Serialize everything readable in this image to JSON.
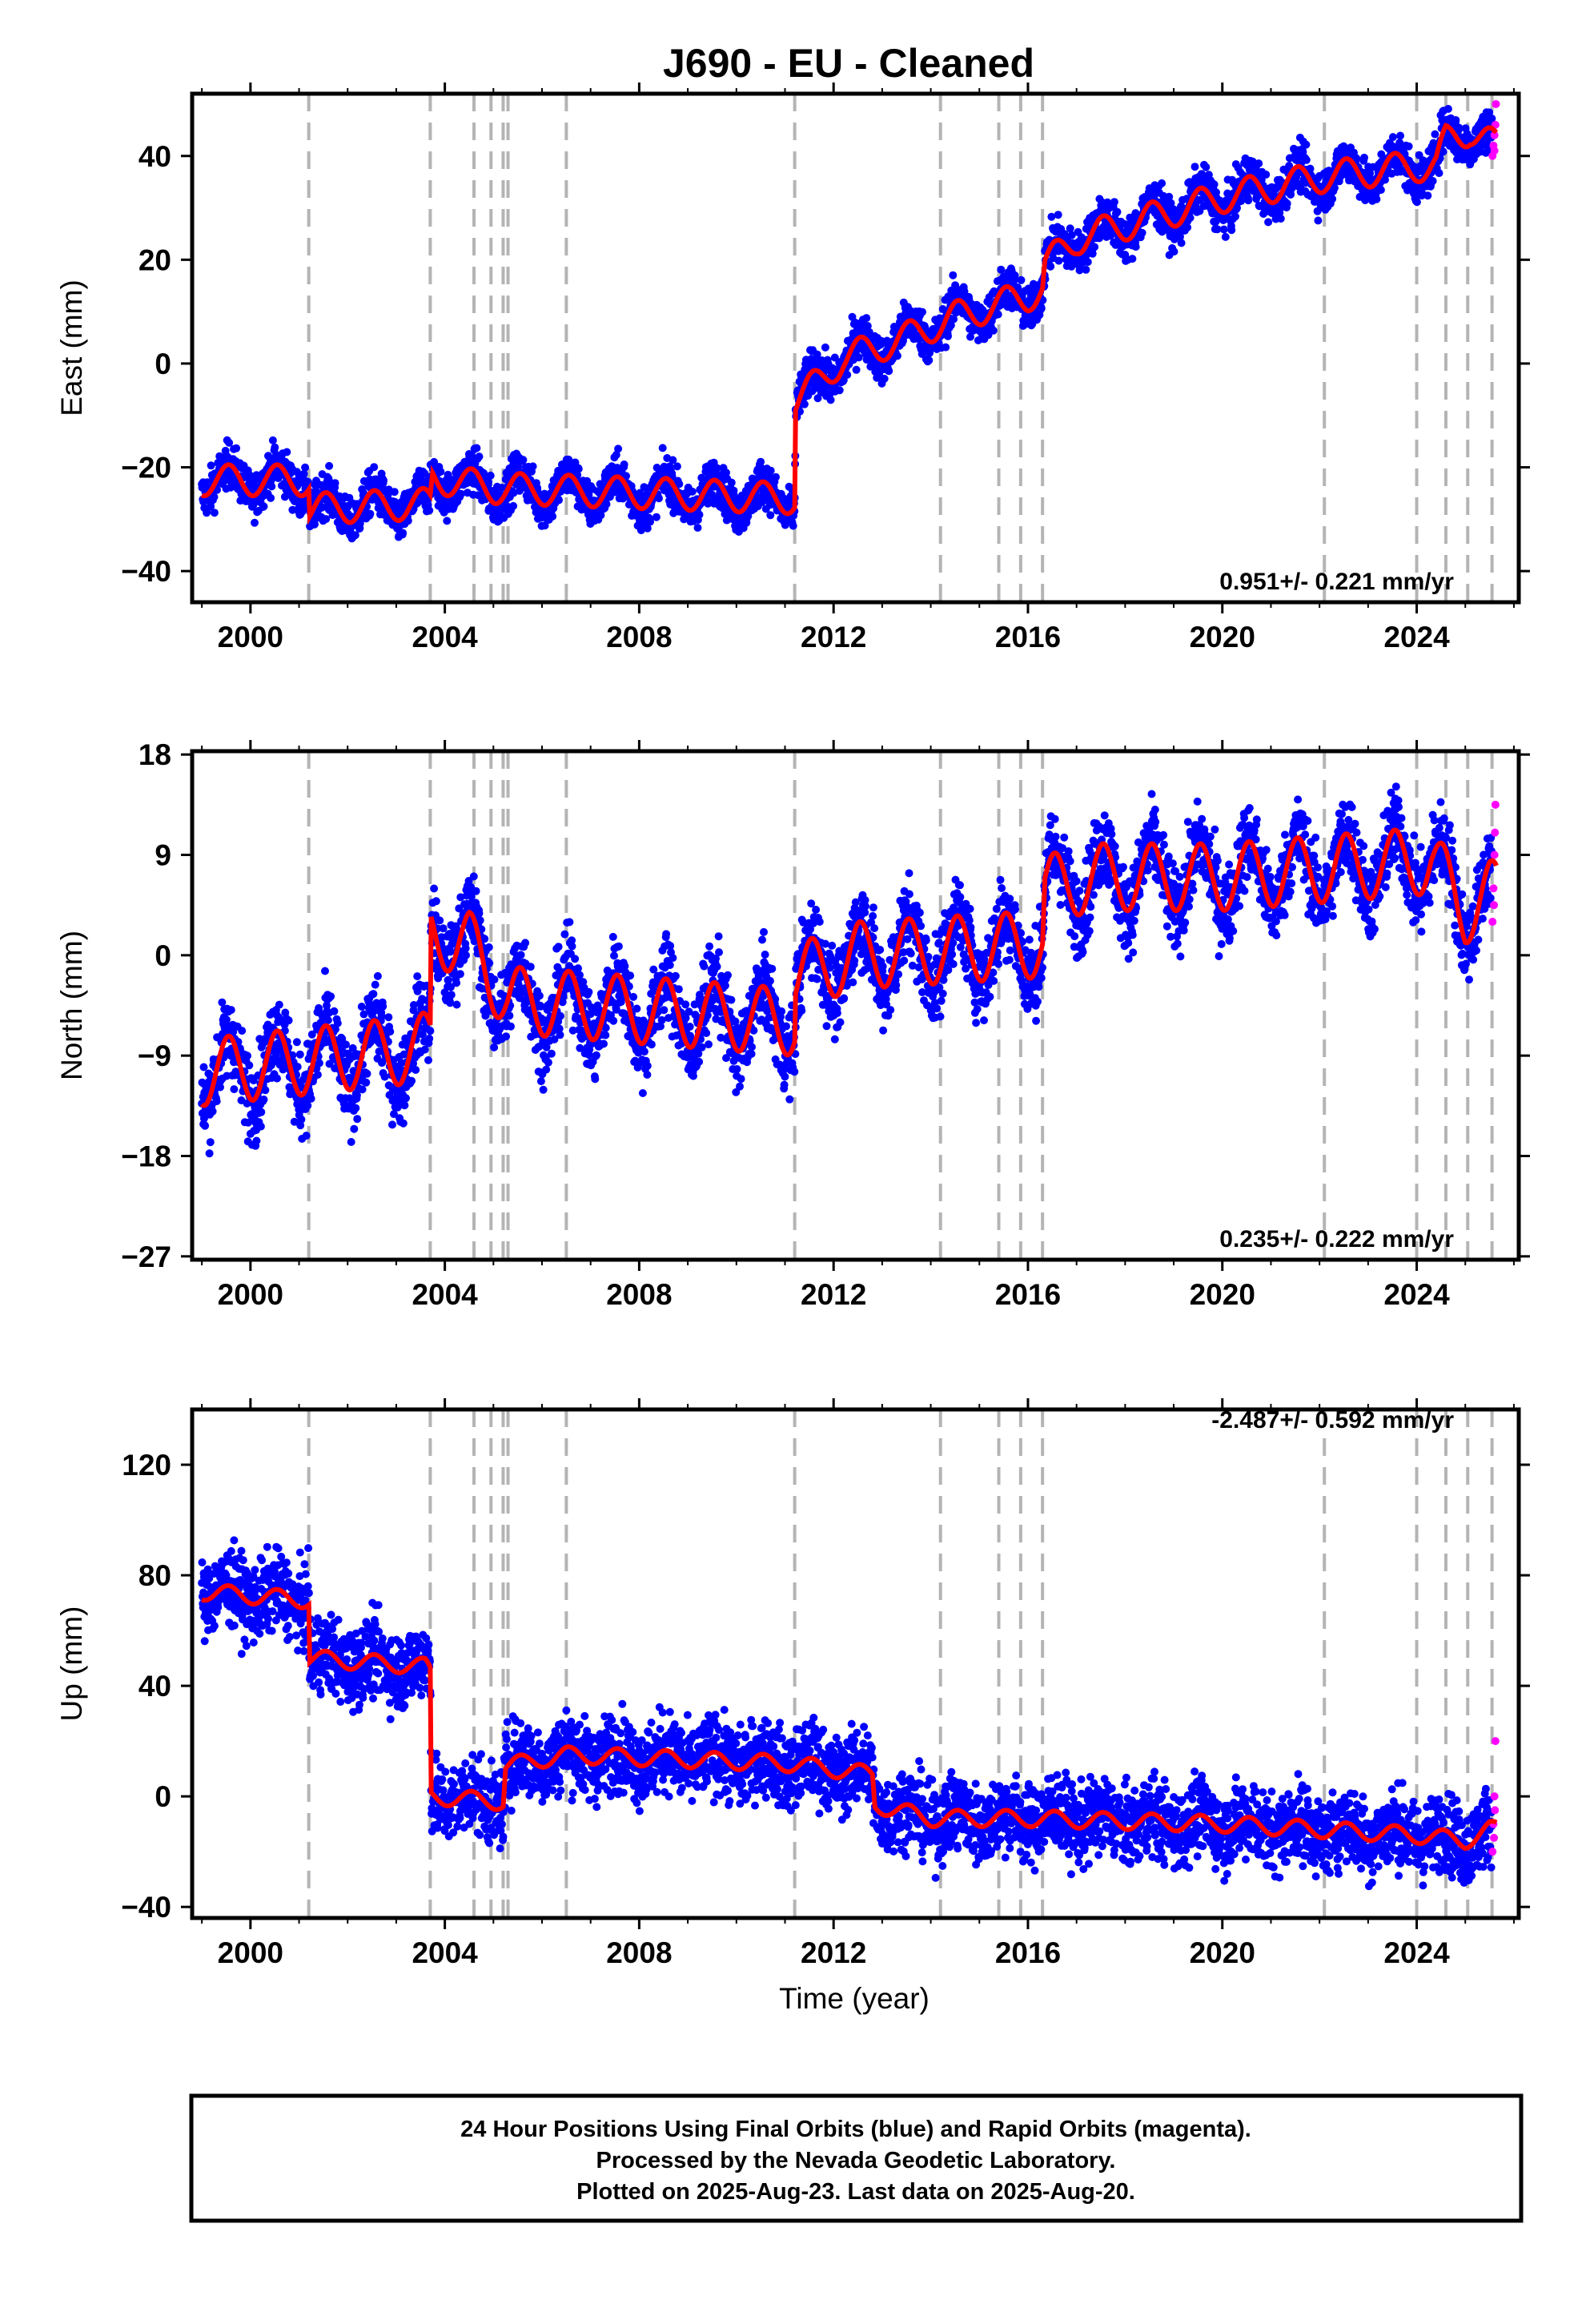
{
  "title": "J690  - EU - Cleaned",
  "xlabel": "Time (year)",
  "footer": {
    "line1": "24 Hour Positions Using Final Orbits (blue) and Rapid Orbits (magenta).",
    "line2": "Processed by the Nevada Geodetic Laboratory.",
    "line3": "Plotted on 2025-Aug-23. Last data on 2025-Aug-20."
  },
  "colors": {
    "final": "#0000ff",
    "rapid": "#ff00ff",
    "model": "#ff0000",
    "events": "#b4b4b4"
  },
  "chart_data": [
    {
      "type": "scatter",
      "component": "east",
      "ylabel": "East (mm)",
      "rate_text": "0.951+/- 0.221 mm/yr",
      "xlim": [
        1998.8,
        2026.1
      ],
      "ylim": [
        -46,
        52
      ],
      "xticks": [
        2000,
        2004,
        2008,
        2012,
        2016,
        2020,
        2024
      ],
      "yticks": [
        -40,
        -20,
        0,
        20,
        40
      ],
      "grid": false,
      "data_start": 1999.0,
      "data_end": 2025.64,
      "final_end": 2025.55,
      "noise": 3,
      "model_points": [
        [
          1999.0,
          -22.5
        ],
        [
          2001.2,
          -22.5
        ],
        [
          2001.22,
          -28
        ],
        [
          2003.7,
          -27
        ],
        [
          2003.75,
          -22
        ],
        [
          2005.0,
          -24
        ],
        [
          2011.2,
          -26
        ],
        [
          2011.22,
          -7.5
        ],
        [
          2012.2,
          1
        ],
        [
          2013.5,
          5
        ],
        [
          2014.5,
          9
        ],
        [
          2016.0,
          13
        ],
        [
          2016.3,
          14.5
        ],
        [
          2016.35,
          19
        ],
        [
          2017.0,
          24
        ],
        [
          2020.0,
          32
        ],
        [
          2022.1,
          36
        ],
        [
          2024.0,
          38
        ],
        [
          2024.4,
          38
        ],
        [
          2024.6,
          43
        ],
        [
          2025.1,
          45
        ],
        [
          2025.6,
          42
        ]
      ],
      "season_amp": 3,
      "rapid_points": [
        [
          2025.56,
          40
        ],
        [
          2025.58,
          42
        ],
        [
          2025.6,
          44
        ],
        [
          2025.62,
          46
        ],
        [
          2025.63,
          50
        ],
        [
          2025.6,
          41
        ]
      ]
    },
    {
      "type": "scatter",
      "component": "north",
      "ylabel": "North (mm)",
      "rate_text": "0.235+/- 0.222 mm/yr",
      "xlim": [
        1998.8,
        2026.1
      ],
      "ylim": [
        -27.3,
        18.3
      ],
      "xticks": [
        2000,
        2004,
        2008,
        2012,
        2016,
        2020,
        2024
      ],
      "yticks": [
        -27,
        -18,
        -9,
        0,
        9,
        18
      ],
      "grid": false,
      "data_start": 1999.0,
      "data_end": 2025.64,
      "final_end": 2025.55,
      "noise": 2.6,
      "model_points": [
        [
          1999.0,
          -10.5
        ],
        [
          2003.3,
          -8.5
        ],
        [
          2003.7,
          -8
        ],
        [
          2003.72,
          2
        ],
        [
          2004.5,
          1
        ],
        [
          2005.3,
          -4
        ],
        [
          2011.2,
          -6
        ],
        [
          2011.22,
          -2
        ],
        [
          2012.5,
          0
        ],
        [
          2016.3,
          1
        ],
        [
          2016.35,
          6
        ],
        [
          2017.5,
          7
        ],
        [
          2020.0,
          7
        ],
        [
          2024.3,
          8.5
        ],
        [
          2025.0,
          4
        ],
        [
          2025.5,
          5.5
        ]
      ],
      "season_amp": 3,
      "rapid_points": [
        [
          2025.56,
          3
        ],
        [
          2025.58,
          6
        ],
        [
          2025.6,
          9
        ],
        [
          2025.62,
          13.5
        ],
        [
          2025.61,
          11
        ],
        [
          2025.59,
          4.5
        ]
      ]
    },
    {
      "type": "scatter",
      "component": "up",
      "ylabel": "Up (mm)",
      "rate_text": "-2.487+/- 0.592 mm/yr",
      "xlim": [
        1998.8,
        2026.1
      ],
      "ylim": [
        -44,
        140
      ],
      "xticks": [
        2000,
        2004,
        2008,
        2012,
        2016,
        2020,
        2024
      ],
      "yticks": [
        -40,
        0,
        40,
        80,
        120
      ],
      "grid": false,
      "data_start": 1999.0,
      "data_end": 2025.64,
      "final_end": 2025.55,
      "noise": 10,
      "model_points": [
        [
          1999.0,
          74
        ],
        [
          2001.2,
          71
        ],
        [
          2001.22,
          50
        ],
        [
          2003.6,
          47
        ],
        [
          2003.7,
          45
        ],
        [
          2003.72,
          0
        ],
        [
          2005.2,
          -2
        ],
        [
          2005.25,
          11
        ],
        [
          2006.5,
          15
        ],
        [
          2011.0,
          12
        ],
        [
          2012.8,
          8
        ],
        [
          2012.85,
          -3
        ],
        [
          2014.0,
          -8
        ],
        [
          2016.0,
          -8
        ],
        [
          2020.0,
          -10
        ],
        [
          2024.0,
          -14
        ],
        [
          2025.0,
          -16
        ],
        [
          2025.5,
          -12
        ]
      ],
      "season_amp": 3,
      "rapid_points": [
        [
          2025.56,
          -20
        ],
        [
          2025.58,
          -10
        ],
        [
          2025.6,
          0
        ],
        [
          2025.62,
          20
        ],
        [
          2025.61,
          -5
        ],
        [
          2025.59,
          -15
        ]
      ]
    }
  ],
  "event_lines": [
    2001.2,
    2003.7,
    2004.6,
    2004.95,
    2005.2,
    2005.3,
    2006.5,
    2011.2,
    2014.2,
    2015.4,
    2015.85,
    2016.3,
    2022.1,
    2024.0,
    2024.6,
    2025.05,
    2025.55
  ]
}
